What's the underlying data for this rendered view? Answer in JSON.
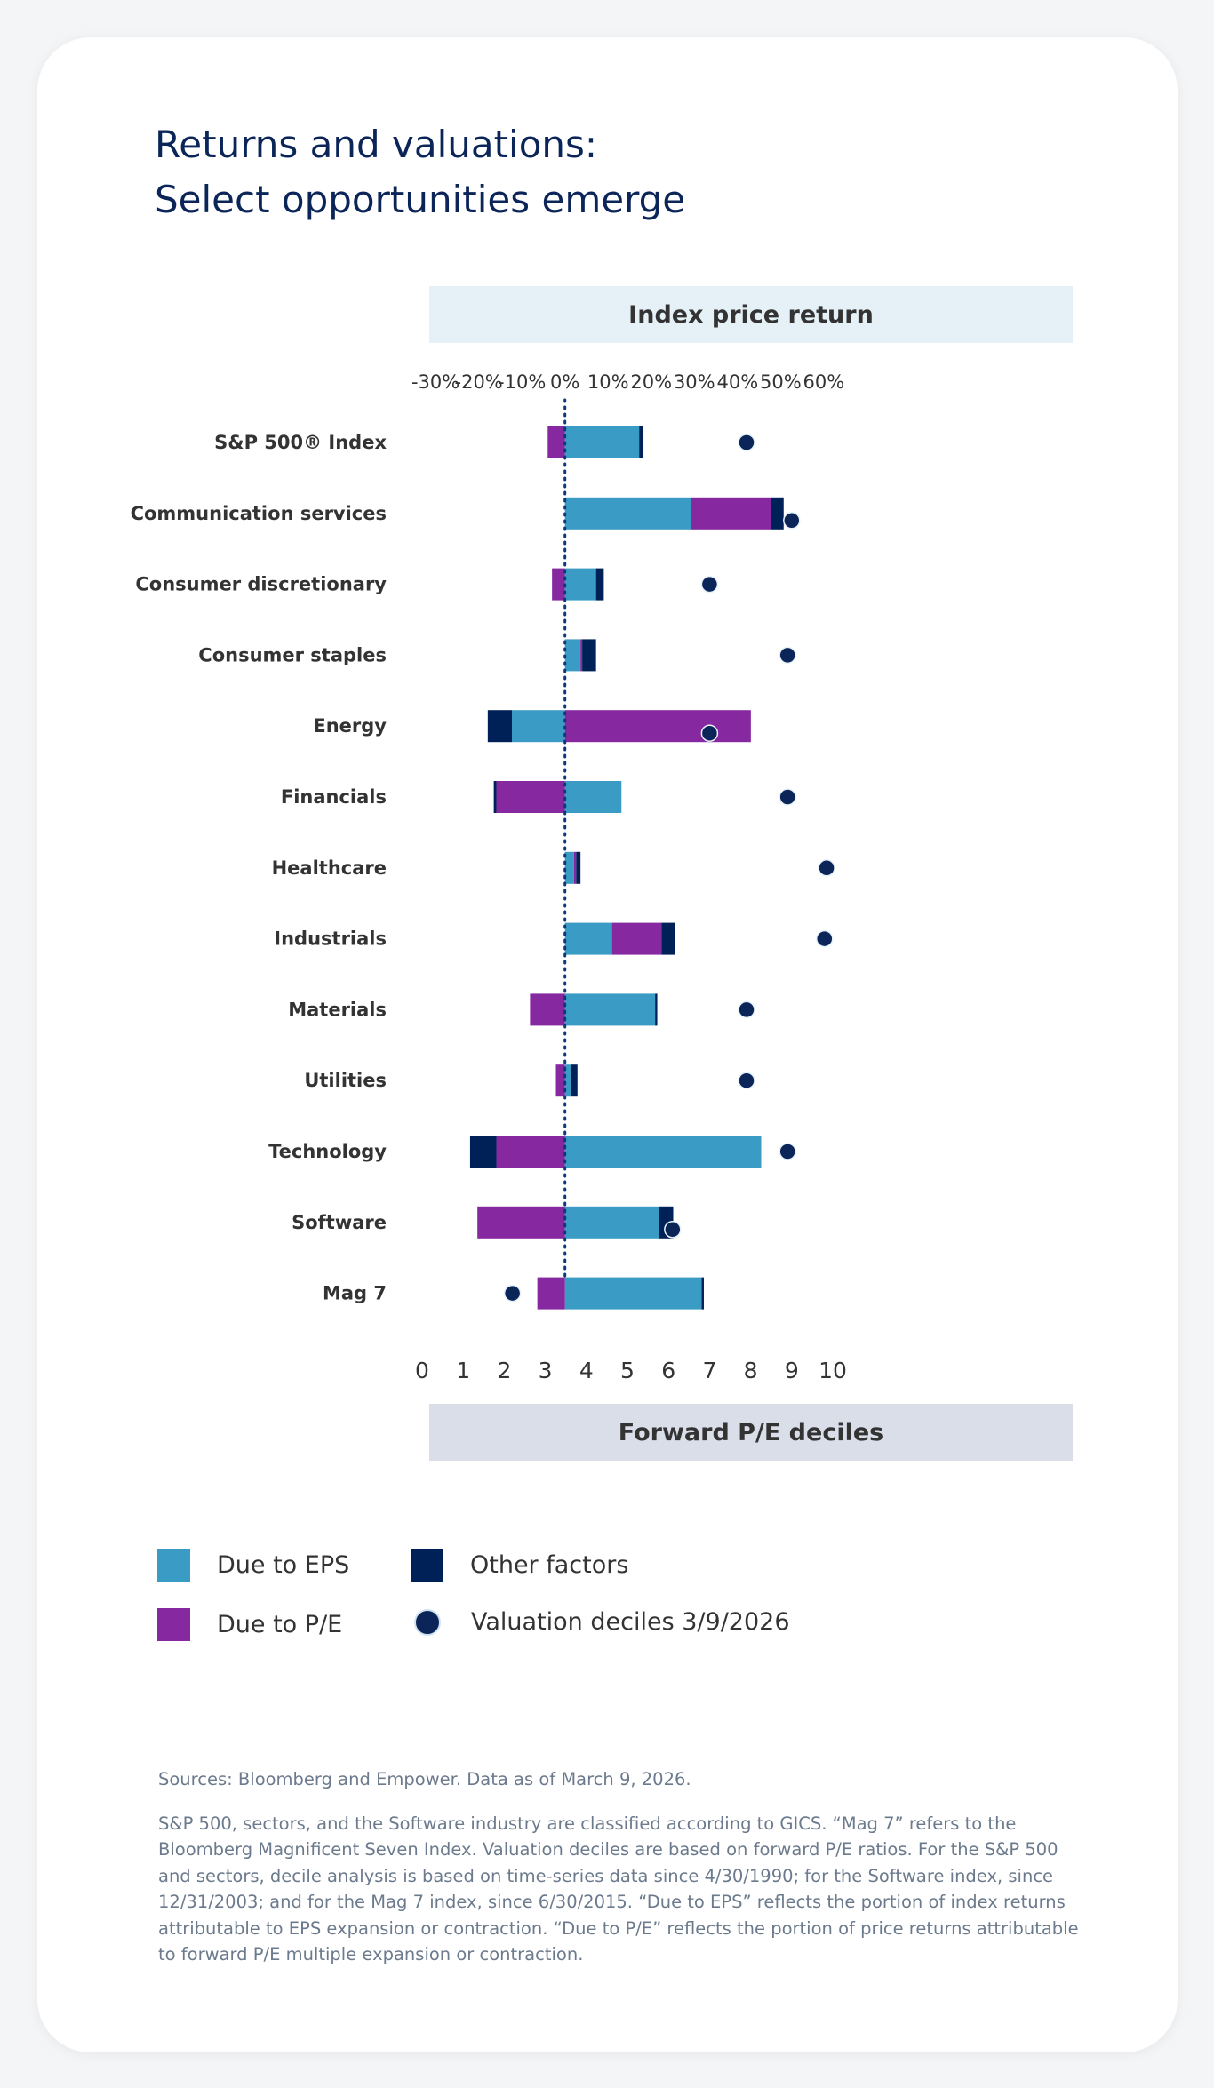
{
  "title_line1": "Returns and valuations:",
  "title_line2": "Select opportunities emerge",
  "colors": {
    "eps": "#3a9cc5",
    "pe": "#8629a0",
    "other": "#002157",
    "dot": "#0b2559"
  },
  "chart_data": {
    "type": "bar",
    "orientation": "horizontal-stacked-with-dots",
    "top_axis_label": "Index price return",
    "bottom_axis_label": "Forward P/E deciles",
    "top_ticks": [
      "-30%",
      "-20%",
      "-10%",
      "0%",
      "10%",
      "20%",
      "30%",
      "40%",
      "50%",
      "60%"
    ],
    "top_xlim": [
      -30,
      60
    ],
    "bottom_ticks": [
      "0",
      "1",
      "2",
      "3",
      "4",
      "5",
      "6",
      "7",
      "8",
      "9",
      "10"
    ],
    "bottom_xlim": [
      0,
      10
    ],
    "categories": [
      "S&P 500® Index",
      "Communication services",
      "Consumer discretionary",
      "Consumer staples",
      "Energy",
      "Financials",
      "Healthcare",
      "Industrials",
      "Materials",
      "Utilities",
      "Technology",
      "Software",
      "Mag 7"
    ],
    "series": [
      {
        "name": "Due to EPS",
        "values": [
          17.2,
          29.2,
          7.2,
          3.6,
          -12.3,
          13.1,
          2.1,
          10.9,
          20.9,
          1.4,
          45.5,
          21.9,
          31.7
        ]
      },
      {
        "name": "Due to P/E",
        "values": [
          -4.0,
          18.5,
          -3.0,
          0.4,
          43.1,
          -15.9,
          0.5,
          11.5,
          -8.1,
          -2.1,
          -15.9,
          -20.3,
          -6.4
        ]
      },
      {
        "name": "Other factors",
        "values": [
          1.0,
          3.0,
          1.8,
          3.2,
          -5.6,
          -0.6,
          1.0,
          3.1,
          0.5,
          1.5,
          -6.1,
          3.2,
          0.5
        ]
      }
    ],
    "dots": {
      "name": "Valuation deciles 3/9/2026",
      "values": [
        7.9,
        9.0,
        7.0,
        8.9,
        7.0,
        8.9,
        9.85,
        9.8,
        7.9,
        7.9,
        8.9,
        6.1,
        2.2
      ]
    },
    "zero_reference_line": "dotted"
  },
  "legend": [
    {
      "label": "Due to EPS",
      "type": "square",
      "color": "#3a9cc5"
    },
    {
      "label": "Other factors",
      "type": "square",
      "color": "#002157"
    },
    {
      "label": "Due to P/E",
      "type": "square",
      "color": "#8629a0"
    },
    {
      "label": "Valuation deciles 3/9/2026",
      "type": "dot",
      "color": "#0b2559"
    }
  ],
  "notes": {
    "sources": "Sources: Bloomberg and Empower. Data as of March 9, 2026.",
    "body": "S&P 500, sectors, and the Software industry are classified according to GICS. “Mag 7” refers to the Bloomberg Magnificent Seven Index. Valuation deciles are based on forward P/E ratios. For the S&P 500 and sectors, decile analysis is based on time-series data since 4/30/1990; for the Software index, since 12/31/2003; and for the Mag 7 index, since 6/30/2015. “Due to EPS” reflects the portion of index returns attributable to EPS expansion or contraction. “Due to P/E” reflects the portion of price returns attributable to forward P/E multiple expansion or contraction."
  }
}
